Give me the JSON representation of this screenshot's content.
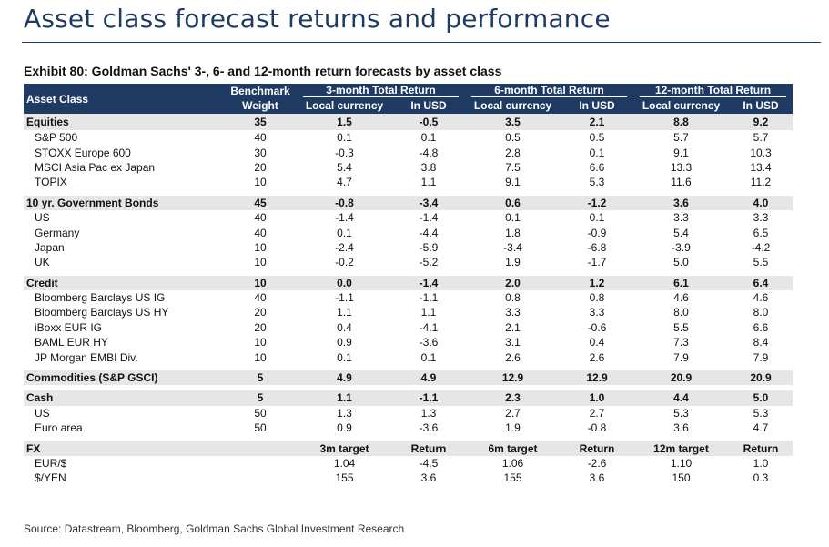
{
  "page": {
    "title": "Asset class forecast returns and performance",
    "exhibit_title": "Exhibit 80: Goldman Sachs' 3-, 6- and 12-month return forecasts by asset class",
    "source": "Source: Datastream, Bloomberg, Goldman Sachs Global Investment Research"
  },
  "header": {
    "asset_class": "Asset Class",
    "benchmark_1": "Benchmark",
    "benchmark_2": "Weight",
    "group_3m": "3-month Total Return",
    "group_6m": "6-month Total Return",
    "group_12m": "12-month Total Return",
    "local_currency": "Local currency",
    "in_usd": "In USD"
  },
  "rows": [
    {
      "type": "cat",
      "label": "Equities",
      "w": "35",
      "l3": "1.5",
      "u3": "-0.5",
      "l6": "3.5",
      "u6": "2.1",
      "l12": "8.8",
      "u12": "9.2"
    },
    {
      "type": "sub",
      "label": "S&P 500",
      "w": "40",
      "l3": "0.1",
      "u3": "0.1",
      "l6": "0.5",
      "u6": "0.5",
      "l12": "5.7",
      "u12": "5.7"
    },
    {
      "type": "sub",
      "label": "STOXX Europe 600",
      "w": "30",
      "l3": "-0.3",
      "u3": "-4.8",
      "l6": "2.8",
      "u6": "0.1",
      "l12": "9.1",
      "u12": "10.3"
    },
    {
      "type": "sub",
      "label": "MSCI Asia Pac ex Japan",
      "w": "20",
      "l3": "5.4",
      "u3": "3.8",
      "l6": "7.5",
      "u6": "6.6",
      "l12": "13.3",
      "u12": "13.4"
    },
    {
      "type": "sub",
      "label": "TOPIX",
      "w": "10",
      "l3": "4.7",
      "u3": "1.1",
      "l6": "9.1",
      "u6": "5.3",
      "l12": "11.6",
      "u12": "11.2"
    },
    {
      "type": "gap"
    },
    {
      "type": "cat",
      "label": "10 yr. Government Bonds",
      "w": "45",
      "l3": "-0.8",
      "u3": "-3.4",
      "l6": "0.6",
      "u6": "-1.2",
      "l12": "3.6",
      "u12": "4.0"
    },
    {
      "type": "sub",
      "label": "US",
      "w": "40",
      "l3": "-1.4",
      "u3": "-1.4",
      "l6": "0.1",
      "u6": "0.1",
      "l12": "3.3",
      "u12": "3.3"
    },
    {
      "type": "sub",
      "label": "Germany",
      "w": "40",
      "l3": "0.1",
      "u3": "-4.4",
      "l6": "1.8",
      "u6": "-0.9",
      "l12": "5.4",
      "u12": "6.5"
    },
    {
      "type": "sub",
      "label": "Japan",
      "w": "10",
      "l3": "-2.4",
      "u3": "-5.9",
      "l6": "-3.4",
      "u6": "-6.8",
      "l12": "-3.9",
      "u12": "-4.2"
    },
    {
      "type": "sub",
      "label": "UK",
      "w": "10",
      "l3": "-0.2",
      "u3": "-5.2",
      "l6": "1.9",
      "u6": "-1.7",
      "l12": "5.0",
      "u12": "5.5"
    },
    {
      "type": "gap"
    },
    {
      "type": "cat",
      "label": "Credit",
      "w": "10",
      "l3": "0.0",
      "u3": "-1.4",
      "l6": "2.0",
      "u6": "1.2",
      "l12": "6.1",
      "u12": "6.4"
    },
    {
      "type": "sub",
      "label": "Bloomberg Barclays US IG",
      "w": "40",
      "l3": "-1.1",
      "u3": "-1.1",
      "l6": "0.8",
      "u6": "0.8",
      "l12": "4.6",
      "u12": "4.6"
    },
    {
      "type": "sub",
      "label": "Bloomberg Barclays US HY",
      "w": "20",
      "l3": "1.1",
      "u3": "1.1",
      "l6": "3.3",
      "u6": "3.3",
      "l12": "8.0",
      "u12": "8.0"
    },
    {
      "type": "sub",
      "label": "iBoxx EUR IG",
      "w": "20",
      "l3": "0.4",
      "u3": "-4.1",
      "l6": "2.1",
      "u6": "-0.6",
      "l12": "5.5",
      "u12": "6.6"
    },
    {
      "type": "sub",
      "label": "BAML EUR HY",
      "w": "10",
      "l3": "0.9",
      "u3": "-3.6",
      "l6": "3.1",
      "u6": "0.4",
      "l12": "7.3",
      "u12": "8.4"
    },
    {
      "type": "sub",
      "label": "JP Morgan EMBI Div.",
      "w": "10",
      "l3": "0.1",
      "u3": "0.1",
      "l6": "2.6",
      "u6": "2.6",
      "l12": "7.9",
      "u12": "7.9"
    },
    {
      "type": "gap"
    },
    {
      "type": "cat",
      "label": "Commodities (S&P GSCI)",
      "w": "5",
      "l3": "4.9",
      "u3": "4.9",
      "l6": "12.9",
      "u6": "12.9",
      "l12": "20.9",
      "u12": "20.9"
    },
    {
      "type": "gap"
    },
    {
      "type": "cat",
      "label": "Cash",
      "w": "5",
      "l3": "1.1",
      "u3": "-1.1",
      "l6": "2.3",
      "u6": "1.0",
      "l12": "4.4",
      "u12": "5.0"
    },
    {
      "type": "sub",
      "label": "US",
      "w": "50",
      "l3": "1.3",
      "u3": "1.3",
      "l6": "2.7",
      "u6": "2.7",
      "l12": "5.3",
      "u12": "5.3"
    },
    {
      "type": "sub",
      "label": "Euro area",
      "w": "50",
      "l3": "0.9",
      "u3": "-3.6",
      "l6": "1.9",
      "u6": "-0.8",
      "l12": "3.6",
      "u12": "4.7"
    },
    {
      "type": "gap"
    },
    {
      "type": "cat",
      "label": "FX",
      "w": "",
      "l3": "3m target",
      "u3": "Return",
      "l6": "6m target",
      "u6": "Return",
      "l12": "12m target",
      "u12": "Return"
    },
    {
      "type": "sub",
      "label": "EUR/$",
      "w": "",
      "l3": "1.04",
      "u3": "-4.5",
      "l6": "1.06",
      "u6": "-2.6",
      "l12": "1.10",
      "u12": "1.0"
    },
    {
      "type": "sub",
      "label": "$/YEN",
      "w": "",
      "l3": "155",
      "u3": "3.6",
      "l6": "155",
      "u6": "3.6",
      "l12": "150",
      "u12": "0.3"
    }
  ]
}
